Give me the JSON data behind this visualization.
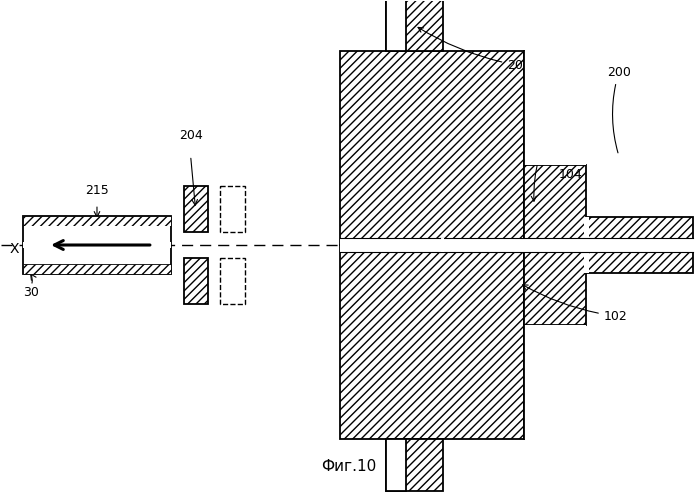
{
  "fig_width": 6.99,
  "fig_height": 4.93,
  "dpi": 100,
  "bg_color": "#ffffff",
  "caption": "Фиг.10"
}
